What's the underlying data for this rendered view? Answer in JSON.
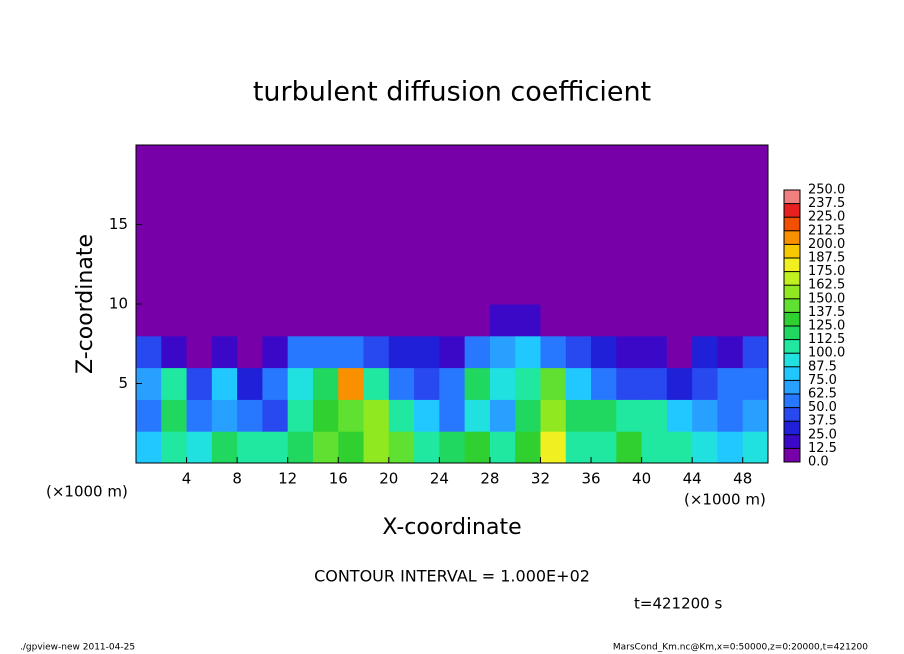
{
  "chart_data": {
    "type": "heatmap",
    "title": "turbulent diffusion coefficient",
    "x_label": "X-coordinate",
    "y_label": "Z-coordinate",
    "x_unit_label": "(×1000 m)",
    "contour_interval_label": "CONTOUR INTERVAL = 1.000E+02",
    "time_label": "t=421200 s",
    "footer_left": "./gpview-new  2011-04-25",
    "footer_right": "MarsCond_Km.nc@Km,x=0:50000,z=0:20000,t=421200",
    "xlim": [
      0,
      50
    ],
    "xticks": [
      4,
      8,
      12,
      16,
      20,
      24,
      28,
      32,
      36,
      40,
      44,
      48
    ],
    "ylim": [
      0,
      20
    ],
    "yticks": [
      5,
      10,
      15
    ],
    "x": [
      1,
      3,
      5,
      7,
      9,
      11,
      13,
      15,
      17,
      19,
      21,
      23,
      25,
      27,
      29,
      31,
      33,
      35,
      37,
      39,
      41,
      43,
      45,
      47,
      49
    ],
    "y": [
      1,
      3,
      5,
      7,
      9,
      11,
      13,
      15,
      17,
      19
    ],
    "z": [
      [
        80,
        110,
        90,
        120,
        110,
        100,
        120,
        140,
        130,
        150,
        140,
        100,
        120,
        130,
        110,
        130,
        180,
        110,
        100,
        130,
        110,
        100,
        90,
        80,
        90
      ],
      [
        60,
        120,
        50,
        70,
        60,
        40,
        110,
        130,
        140,
        150,
        100,
        80,
        60,
        90,
        70,
        120,
        150,
        120,
        120,
        110,
        100,
        80,
        70,
        60,
        70
      ],
      [
        70,
        110,
        40,
        80,
        30,
        50,
        90,
        120,
        200,
        110,
        60,
        40,
        60,
        120,
        90,
        110,
        140,
        80,
        60,
        40,
        40,
        30,
        40,
        50,
        60
      ],
      [
        40,
        20,
        10,
        20,
        10,
        20,
        60,
        60,
        50,
        40,
        30,
        30,
        20,
        60,
        70,
        80,
        60,
        40,
        30,
        20,
        20,
        10,
        30,
        20,
        40
      ],
      [
        0,
        0,
        0,
        0,
        0,
        0,
        0,
        0,
        0,
        0,
        0,
        0,
        0,
        0,
        15,
        15,
        0,
        0,
        0,
        0,
        0,
        0,
        0,
        0,
        0
      ],
      [
        0,
        0,
        0,
        0,
        0,
        0,
        0,
        0,
        0,
        0,
        0,
        0,
        0,
        0,
        0,
        0,
        0,
        0,
        0,
        0,
        0,
        0,
        0,
        0,
        0
      ],
      [
        0,
        0,
        0,
        0,
        0,
        0,
        0,
        0,
        0,
        0,
        0,
        0,
        0,
        0,
        0,
        0,
        0,
        0,
        0,
        0,
        0,
        0,
        0,
        0,
        0
      ],
      [
        0,
        0,
        0,
        0,
        0,
        0,
        0,
        0,
        0,
        0,
        0,
        0,
        0,
        0,
        0,
        0,
        0,
        0,
        0,
        0,
        0,
        0,
        0,
        0,
        0
      ],
      [
        0,
        0,
        0,
        0,
        0,
        0,
        0,
        0,
        0,
        0,
        0,
        0,
        0,
        0,
        0,
        0,
        0,
        0,
        0,
        0,
        0,
        0,
        0,
        0,
        0
      ],
      [
        0,
        0,
        0,
        0,
        0,
        0,
        0,
        0,
        0,
        0,
        0,
        0,
        0,
        0,
        0,
        0,
        0,
        0,
        0,
        0,
        0,
        0,
        0,
        0,
        0
      ]
    ],
    "colorbar": {
      "ticks": [
        {
          "value": 0,
          "label": "0.0"
        },
        {
          "value": 12.5,
          "label": "12.5"
        },
        {
          "value": 25,
          "label": "25.0"
        },
        {
          "value": 37.5,
          "label": "37.5"
        },
        {
          "value": 50,
          "label": "50.0"
        },
        {
          "value": 62.5,
          "label": "62.5"
        },
        {
          "value": 75,
          "label": "75.0"
        },
        {
          "value": 87.5,
          "label": "87.5"
        },
        {
          "value": 100,
          "label": "100.0"
        },
        {
          "value": 112.5,
          "label": "112.5"
        },
        {
          "value": 125,
          "label": "125.0"
        },
        {
          "value": 137.5,
          "label": "137.5"
        },
        {
          "value": 150,
          "label": "150.0"
        },
        {
          "value": 162.5,
          "label": "162.5"
        },
        {
          "value": 175,
          "label": "175.0"
        },
        {
          "value": 187.5,
          "label": "187.5"
        },
        {
          "value": 200,
          "label": "200.0"
        },
        {
          "value": 212.5,
          "label": "212.5"
        },
        {
          "value": 225,
          "label": "225.0"
        },
        {
          "value": 237.5,
          "label": "237.5"
        },
        {
          "value": 250,
          "label": "250.0"
        }
      ],
      "colors": [
        "#7800a8",
        "#3c08c8",
        "#1f20d8",
        "#2848f0",
        "#2878ff",
        "#28a0ff",
        "#20c8ff",
        "#20e0e0",
        "#20e8a0",
        "#20d860",
        "#30d030",
        "#60e030",
        "#90e820",
        "#c0f020",
        "#f0f020",
        "#f8c800",
        "#f89000",
        "#f05000",
        "#e82020",
        "#f08080"
      ]
    }
  }
}
